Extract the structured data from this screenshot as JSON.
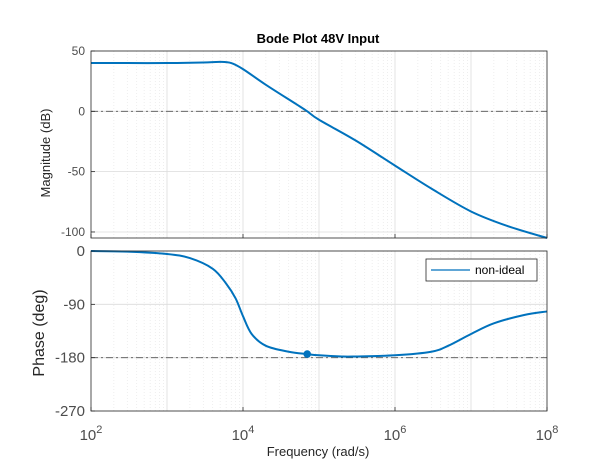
{
  "chart_data": {
    "type": "line",
    "title": "Bode Plot 48V Input",
    "xlabel": "Frequency  (rad/s)",
    "x_scale": "log",
    "x_range": [
      100,
      100000000
    ],
    "x_ticks": [
      {
        "value": 100,
        "base": "10",
        "exp": "2"
      },
      {
        "value": 10000,
        "base": "10",
        "exp": "4"
      },
      {
        "value": 1000000,
        "base": "10",
        "exp": "6"
      },
      {
        "value": 100000000,
        "base": "10",
        "exp": "8"
      }
    ],
    "grid": true,
    "legend": {
      "entries": [
        "non-ideal"
      ],
      "location": "top-right of phase axes"
    },
    "magnitude": {
      "ylabel": "Magnitude (dB)",
      "ylim": [
        -105,
        50
      ],
      "yticks": [
        "50",
        "0",
        "-50",
        "-100"
      ],
      "reference_line": 0,
      "series": [
        {
          "name": "non-ideal",
          "color": "#0072bd",
          "x": [
            100,
            300,
            1000,
            3000,
            5000,
            7000,
            10000,
            20000,
            50000,
            70000,
            100000,
            300000,
            1000000,
            3000000,
            10000000,
            30000000,
            100000000
          ],
          "y": [
            40,
            40,
            40,
            40.5,
            41,
            40,
            35,
            22,
            6,
            0,
            -7,
            -24,
            -45,
            -64,
            -83,
            -95,
            -105
          ]
        }
      ]
    },
    "phase": {
      "ylabel": "Phase (deg)",
      "ylim": [
        -270,
        0
      ],
      "yticks": [
        "0",
        "-90",
        "-180",
        "-270"
      ],
      "reference_line": -180,
      "series": [
        {
          "name": "non-ideal",
          "color": "#0072bd",
          "x": [
            100,
            300,
            1000,
            2000,
            4000,
            6000,
            8000,
            10000,
            13000,
            20000,
            40000,
            70000,
            100000,
            200000,
            300000,
            1000000,
            3000000,
            5000000,
            10000000,
            20000000,
            50000000,
            100000000
          ],
          "y": [
            0,
            -1,
            -5,
            -12,
            -30,
            -55,
            -80,
            -110,
            -140,
            -160,
            -170,
            -174,
            -176,
            -178,
            -178,
            -176,
            -170,
            -160,
            -140,
            -122,
            -108,
            -102
          ]
        }
      ],
      "marker": {
        "x": 70000,
        "y": -174
      }
    }
  }
}
